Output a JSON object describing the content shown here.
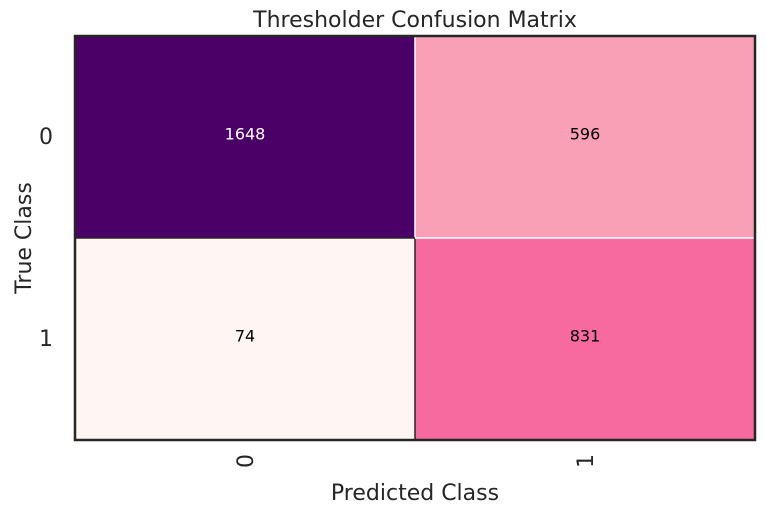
{
  "chart_data": {
    "type": "heatmap",
    "title": "Thresholder Confusion Matrix",
    "xlabel": "Predicted Class",
    "ylabel": "True Class",
    "x_categories": [
      "0",
      "1"
    ],
    "y_categories": [
      "0",
      "1"
    ],
    "values": [
      [
        1648,
        596
      ],
      [
        74,
        831
      ]
    ],
    "cell_colors": [
      [
        "#4a0066",
        "#f9a0b6"
      ],
      [
        "#fff5f2",
        "#f76aa0"
      ]
    ],
    "cell_text_colors": [
      [
        "#ffffff",
        "#000000"
      ],
      [
        "#000000",
        "#000000"
      ]
    ],
    "grid": false,
    "legend": "none"
  }
}
